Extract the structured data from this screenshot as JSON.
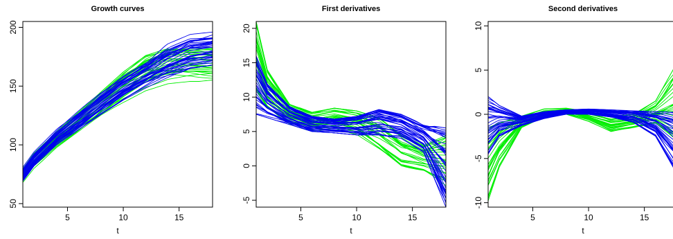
{
  "chart_data": [
    {
      "type": "line",
      "title": "Growth curves",
      "xlabel": "t",
      "ylabel": "",
      "xlim": [
        1,
        18
      ],
      "ylim": [
        47,
        205
      ],
      "xticks": [
        5,
        10,
        15
      ],
      "yticks": [
        50,
        100,
        150,
        200
      ],
      "group_colors": {
        "green": "#00ee00",
        "blue": "#0000ee"
      },
      "groups": {
        "green": {
          "count": 28,
          "summary": {
            "t": [
              1,
              2,
              4,
              6,
              8,
              10,
              12,
              14,
              16,
              18
            ],
            "low": [
              68,
              80,
              97,
              110,
              124,
              136,
              146,
              152,
              154,
              154
            ],
            "mean": [
              74,
              86,
              104,
              119,
              133,
              145,
              156,
              163,
              166,
              167
            ],
            "high": [
              80,
              93,
              111,
              128,
              145,
              162,
              176,
              182,
              182,
              182
            ]
          }
        },
        "blue": {
          "count": 40,
          "summary": {
            "t": [
              1,
              2,
              4,
              6,
              8,
              10,
              12,
              14,
              16,
              18
            ],
            "low": [
              69,
              82,
              100,
              113,
              126,
              138,
              148,
              157,
              165,
              168
            ],
            "mean": [
              75,
              88,
              106,
              121,
              135,
              147,
              158,
              169,
              178,
              182
            ],
            "high": [
              81,
              94,
              113,
              129,
              145,
              160,
              172,
              186,
              194,
              196
            ]
          }
        }
      }
    },
    {
      "type": "line",
      "title": "First derivatives",
      "xlabel": "t",
      "ylabel": "",
      "xlim": [
        1,
        18
      ],
      "ylim": [
        -6,
        21
      ],
      "xticks": [
        5,
        10,
        15
      ],
      "yticks": [
        -5,
        0,
        5,
        10,
        15,
        20
      ],
      "group_colors": {
        "green": "#00ee00",
        "blue": "#0000ee"
      },
      "groups": {
        "green": {
          "count": 28,
          "summary": {
            "t": [
              1,
              2,
              4,
              6,
              8,
              10,
              12,
              14,
              16,
              18
            ],
            "low": [
              10,
              8,
              6,
              5,
              5.5,
              4.5,
              2,
              -0.5,
              -1,
              -3
            ],
            "mean": [
              15,
              11,
              7.6,
              6.8,
              7.2,
              6.5,
              4.5,
              2,
              0.5,
              0
            ],
            "high": [
              21,
              14,
              9,
              7.8,
              8.4,
              8,
              7,
              4.5,
              3,
              4.5
            ]
          }
        },
        "blue": {
          "count": 40,
          "summary": {
            "t": [
              1,
              2,
              4,
              6,
              8,
              10,
              12,
              14,
              16,
              18
            ],
            "low": [
              7.5,
              7,
              6,
              5,
              4.8,
              4.5,
              4.5,
              4,
              2,
              -6
            ],
            "mean": [
              11,
              9.5,
              7.4,
              6.2,
              5.8,
              5.9,
              6.3,
              5.8,
              4,
              -1.5
            ],
            "high": [
              16,
              12,
              8.6,
              7.2,
              6.8,
              7.2,
              8.2,
              7.5,
              6,
              5.5
            ]
          }
        }
      }
    },
    {
      "type": "line",
      "title": "Second derivatives",
      "xlabel": "t",
      "ylabel": "",
      "xlim": [
        1,
        18
      ],
      "ylim": [
        -10.5,
        10.5
      ],
      "xticks": [
        5,
        10,
        15
      ],
      "yticks": [
        -10,
        -5,
        0,
        5,
        10
      ],
      "group_colors": {
        "green": "#00ee00",
        "blue": "#0000ee"
      },
      "groups": {
        "green": {
          "count": 28,
          "summary": {
            "t": [
              1,
              2,
              4,
              6,
              8,
              10,
              12,
              14,
              16,
              18
            ],
            "low": [
              -9.8,
              -6,
              -1.5,
              -0.3,
              0,
              -0.8,
              -2,
              -1.5,
              -1,
              -3
            ],
            "mean": [
              -5,
              -3,
              -0.9,
              0.2,
              0.4,
              -0.2,
              -1,
              -0.8,
              0,
              2
            ],
            "high": [
              -1.5,
              -1,
              -0.2,
              0.6,
              0.7,
              0.3,
              -0.2,
              0,
              1.5,
              6
            ]
          }
        },
        "blue": {
          "count": 40,
          "summary": {
            "t": [
              1,
              2,
              4,
              6,
              8,
              10,
              12,
              14,
              16,
              18
            ],
            "low": [
              -4.5,
              -2.5,
              -1.3,
              -0.5,
              0,
              0,
              -0.3,
              -0.9,
              -2.5,
              -7
            ],
            "mean": [
              -1.2,
              -1,
              -0.8,
              -0.1,
              0.3,
              0.4,
              0.2,
              -0.2,
              -1,
              -2.5
            ],
            "high": [
              2,
              1,
              -0.2,
              0.3,
              0.5,
              0.6,
              0.5,
              0.4,
              0.3,
              0.2
            ]
          }
        }
      }
    }
  ]
}
